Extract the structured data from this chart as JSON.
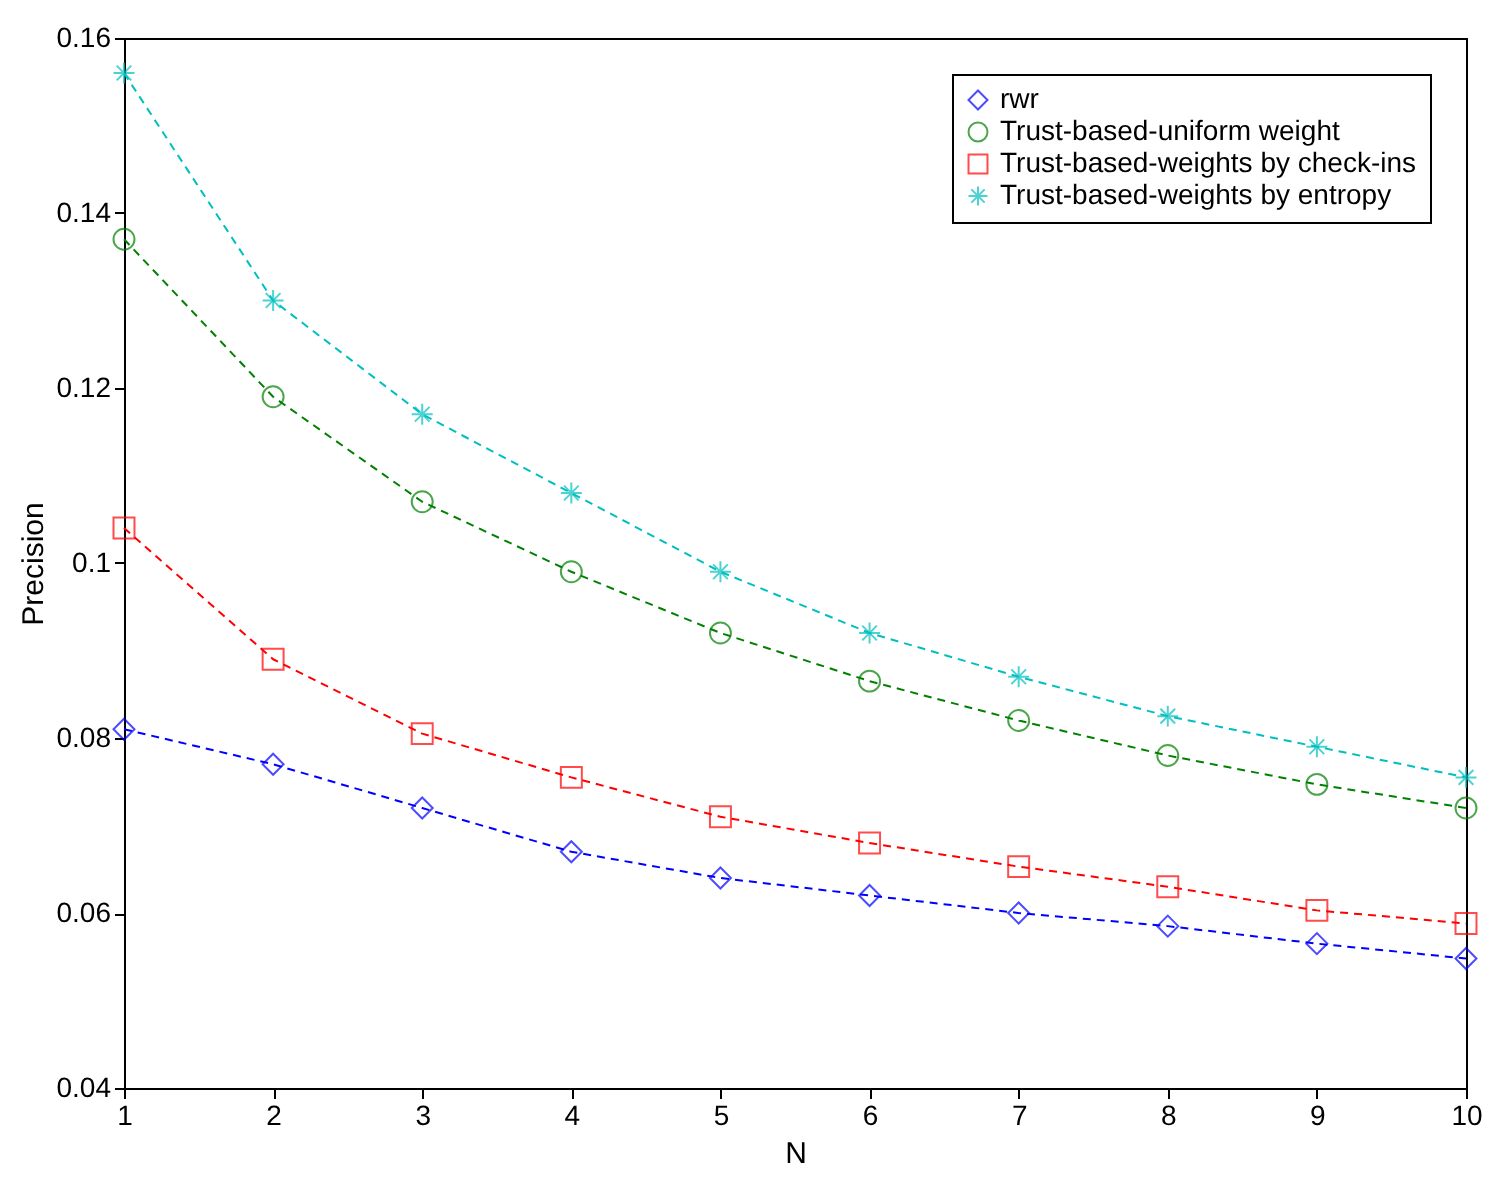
{
  "chart_data": {
    "type": "line",
    "xlabel": "N",
    "ylabel": "Precision",
    "x": [
      1,
      2,
      3,
      4,
      5,
      6,
      7,
      8,
      9,
      10
    ],
    "xlim": [
      1,
      10
    ],
    "xticks": [
      1,
      2,
      3,
      4,
      5,
      6,
      7,
      8,
      9,
      10
    ],
    "ylim": [
      0.04,
      0.16
    ],
    "yticks": [
      0.04,
      0.06,
      0.08,
      0.1,
      0.12,
      0.14,
      0.16
    ],
    "grid": false,
    "legend": "top right",
    "line_style": "dashed",
    "series": [
      {
        "name": "rwr",
        "color": "#0000ff",
        "marker": "diamond",
        "values": [
          0.081,
          0.077,
          0.072,
          0.067,
          0.064,
          0.062,
          0.06,
          0.0585,
          0.0565,
          0.0548
        ]
      },
      {
        "name": "Trust-based-uniform weight",
        "color": "#008000",
        "marker": "circle",
        "values": [
          0.137,
          0.119,
          0.107,
          0.099,
          0.092,
          0.0865,
          0.082,
          0.078,
          0.0747,
          0.072
        ]
      },
      {
        "name": "Trust-based-weights by check-ins",
        "color": "#ff0000",
        "marker": "square",
        "values": [
          0.104,
          0.089,
          0.0805,
          0.0755,
          0.071,
          0.068,
          0.0653,
          0.063,
          0.0603,
          0.0588
        ]
      },
      {
        "name": "Trust-based-weights by entropy",
        "color": "#00bfbf",
        "marker": "cross",
        "values": [
          0.156,
          0.13,
          0.117,
          0.108,
          0.099,
          0.092,
          0.087,
          0.0825,
          0.079,
          0.0755
        ]
      }
    ]
  }
}
